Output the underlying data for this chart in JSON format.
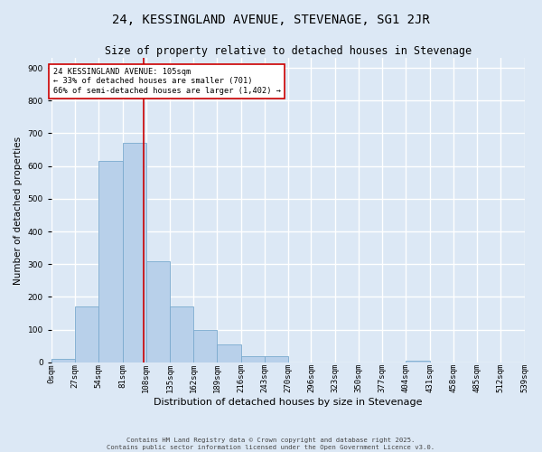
{
  "title": "24, KESSINGLAND AVENUE, STEVENAGE, SG1 2JR",
  "subtitle": "Size of property relative to detached houses in Stevenage",
  "xlabel": "Distribution of detached houses by size in Stevenage",
  "ylabel": "Number of detached properties",
  "footer_line1": "Contains HM Land Registry data © Crown copyright and database right 2025.",
  "footer_line2": "Contains public sector information licensed under the Open Government Licence v3.0.",
  "bin_labels": [
    "0sqm",
    "27sqm",
    "54sqm",
    "81sqm",
    "108sqm",
    "135sqm",
    "162sqm",
    "189sqm",
    "216sqm",
    "243sqm",
    "270sqm",
    "296sqm",
    "323sqm",
    "350sqm",
    "377sqm",
    "404sqm",
    "431sqm",
    "458sqm",
    "485sqm",
    "512sqm",
    "539sqm"
  ],
  "bin_edges": [
    0,
    27,
    54,
    81,
    108,
    135,
    162,
    189,
    216,
    243,
    270,
    296,
    323,
    350,
    377,
    404,
    431,
    458,
    485,
    512,
    539
  ],
  "bar_heights": [
    10,
    170,
    615,
    670,
    310,
    170,
    100,
    55,
    20,
    20,
    0,
    0,
    0,
    0,
    0,
    5,
    0,
    0,
    0,
    0
  ],
  "bar_color": "#b8d0ea",
  "bar_edge_color": "#7aaace",
  "property_size": 105,
  "vline_color": "#cc0000",
  "annotation_line1": "24 KESSINGLAND AVENUE: 105sqm",
  "annotation_line2": "← 33% of detached houses are smaller (701)",
  "annotation_line3": "66% of semi-detached houses are larger (1,402) →",
  "annotation_box_color": "#ffffff",
  "annotation_border_color": "#cc0000",
  "ylim": [
    0,
    930
  ],
  "yticks": [
    0,
    100,
    200,
    300,
    400,
    500,
    600,
    700,
    800,
    900
  ],
  "bg_color": "#dce8f5",
  "fig_bg_color": "#dce8f5",
  "grid_color": "#ffffff",
  "title_fontsize": 10,
  "subtitle_fontsize": 8.5,
  "ylabel_fontsize": 7.5,
  "xlabel_fontsize": 8,
  "tick_fontsize": 6.5
}
